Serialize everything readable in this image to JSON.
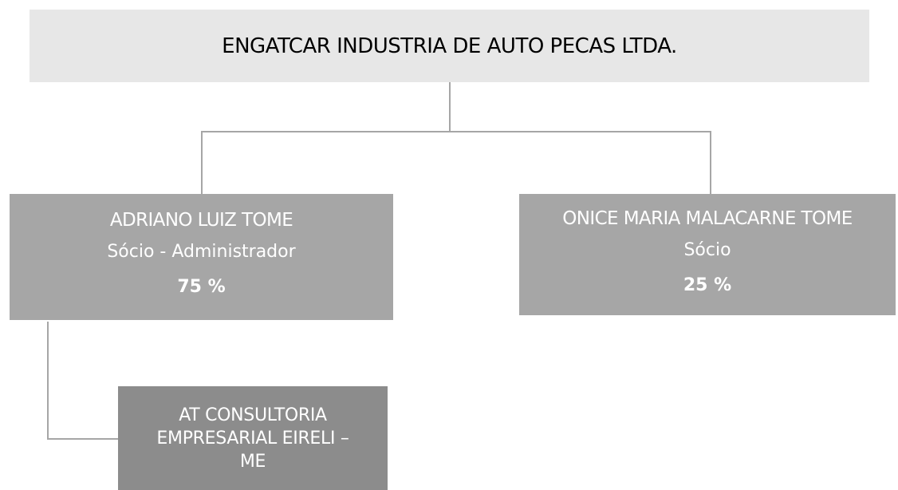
{
  "nodes": [
    {
      "label": "ENGATCAR INDUSTRIA DE AUTO PECAS LTDA."
    },
    {
      "label": "ADRIANO LUIZ TOME",
      "role": "Sócio - Administrador",
      "share": "75 %"
    },
    {
      "label": "ONICE MARIA MALACARNE TOME",
      "role": "Sócio",
      "share": "25 %"
    },
    {
      "lines": [
        "AT CONSULTORIA",
        "EMPRESARIAL EIRELI –",
        "ME"
      ]
    }
  ]
}
